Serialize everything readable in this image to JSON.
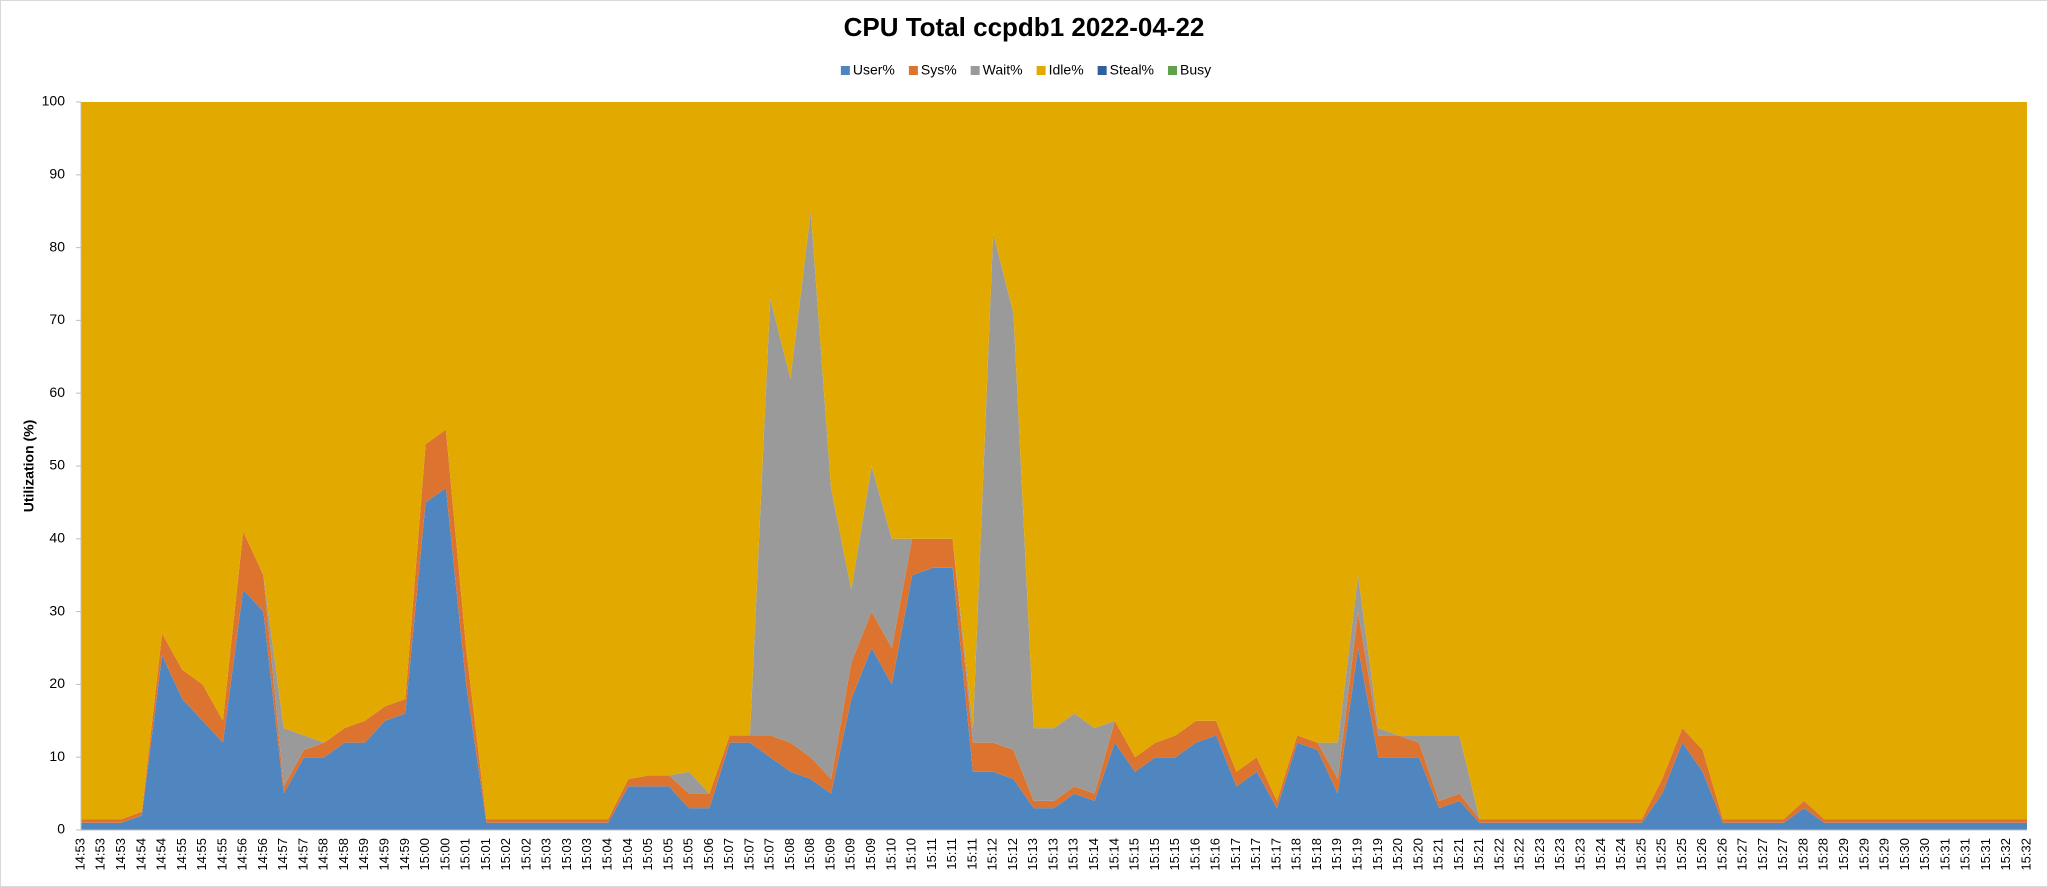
{
  "chart_data": {
    "type": "area",
    "title": "CPU Total ccpdb1  2022-04-22",
    "y_label": "Utilization (%)",
    "legend": "top",
    "categories": [
      "14:53",
      "14:53",
      "14:53",
      "14:54",
      "14:54",
      "14:55",
      "14:55",
      "14:55",
      "14:56",
      "14:56",
      "14:57",
      "14:57",
      "14:58",
      "14:58",
      "14:59",
      "14:59",
      "14:59",
      "15:00",
      "15:00",
      "15:01",
      "15:01",
      "15:02",
      "15:02",
      "15:03",
      "15:03",
      "15:03",
      "15:04",
      "15:04",
      "15:05",
      "15:05",
      "15:05",
      "15:06",
      "15:07",
      "15:07",
      "15:07",
      "15:08",
      "15:08",
      "15:09",
      "15:09",
      "15:09",
      "15:10",
      "15:10",
      "15:11",
      "15:11",
      "15:11",
      "15:12",
      "15:12",
      "15:13",
      "15:13",
      "15:13",
      "15:14",
      "15:14",
      "15:15",
      "15:15",
      "15:15",
      "15:16",
      "15:16",
      "15:17",
      "15:17",
      "15:17",
      "15:18",
      "15:18",
      "15:19",
      "15:19",
      "15:19",
      "15:20",
      "15:20",
      "15:21",
      "15:21",
      "15:21",
      "15:22",
      "15:22",
      "15:23",
      "15:23",
      "15:23",
      "15:24",
      "15:24",
      "15:25",
      "15:25",
      "15:25",
      "15:26",
      "15:26",
      "15:27",
      "15:27",
      "15:27",
      "15:28",
      "15:28",
      "15:29",
      "15:29",
      "15:29",
      "15:30",
      "15:30",
      "15:31",
      "15:31",
      "15:31",
      "15:32",
      "15:32"
    ],
    "series": [
      {
        "name": "User%",
        "color": "#4f86bf",
        "values": [
          1,
          1,
          1,
          2,
          24,
          18,
          15,
          12,
          33,
          30,
          5,
          10,
          10,
          12,
          12,
          15,
          16,
          45,
          47,
          20,
          1,
          1,
          1,
          1,
          1,
          1,
          1,
          6,
          6,
          6,
          3,
          3,
          12,
          12,
          10,
          8,
          7,
          5,
          18,
          25,
          20,
          35,
          36,
          36,
          8,
          8,
          7,
          3,
          3,
          5,
          4,
          12,
          8,
          10,
          10,
          12,
          13,
          6,
          8,
          3,
          12,
          11,
          5,
          25,
          10,
          10,
          10,
          3,
          4,
          1,
          1,
          1,
          1,
          1,
          1,
          1,
          1,
          1,
          5,
          12,
          8,
          1,
          1,
          1,
          1,
          3,
          1,
          1,
          1,
          1,
          1,
          1,
          1,
          1,
          1,
          1,
          1
        ]
      },
      {
        "name": "Sys%",
        "color": "#dc7430",
        "values": [
          0.5,
          0.5,
          0.5,
          0.5,
          3,
          4,
          5,
          3,
          8,
          5,
          1,
          1,
          2,
          2,
          3,
          2,
          2,
          8,
          8,
          5,
          0.5,
          0.5,
          0.5,
          0.5,
          0.5,
          0.5,
          0.5,
          1,
          1.5,
          1.5,
          2,
          2,
          1,
          1,
          3,
          4,
          3,
          2,
          5,
          5,
          5,
          5,
          4,
          4,
          4,
          4,
          4,
          1,
          1,
          1,
          1,
          3,
          2,
          2,
          3,
          3,
          2,
          2,
          2,
          1,
          1,
          1,
          2,
          5,
          3,
          3,
          2,
          1,
          1,
          0.5,
          0.5,
          0.5,
          0.5,
          0.5,
          0.5,
          0.5,
          0.5,
          0.5,
          2,
          2,
          3,
          0.5,
          0.5,
          0.5,
          0.5,
          1,
          0.5,
          0.5,
          0.5,
          0.5,
          0.5,
          0.5,
          0.5,
          0.5,
          0.5,
          0.5,
          0.5
        ]
      },
      {
        "name": "Wait%",
        "color": "#9a9a9a",
        "values": [
          0,
          0,
          0,
          0,
          0,
          0,
          0,
          0,
          0,
          0,
          8,
          2,
          0,
          0,
          0,
          0,
          0,
          0,
          0,
          0,
          0,
          0,
          0,
          0,
          0,
          0,
          0,
          0,
          0,
          0,
          3,
          0,
          0,
          0,
          60,
          50,
          75,
          40,
          10,
          20,
          15,
          0,
          0,
          0,
          2,
          70,
          60,
          10,
          10,
          10,
          9,
          0,
          0,
          0,
          0,
          0,
          0,
          0,
          0,
          0,
          0,
          0,
          5,
          5,
          1,
          0,
          1,
          9,
          8,
          0,
          0,
          0,
          0,
          0,
          0,
          0,
          0,
          0,
          0,
          0,
          0,
          0,
          0,
          0,
          0,
          0,
          0,
          0,
          0,
          0,
          0,
          0,
          0,
          0,
          0,
          0,
          0
        ]
      },
      {
        "name": "Idle%",
        "color": "#e2aa00",
        "values": [
          98.5,
          98.5,
          98.5,
          97.5,
          73,
          78,
          80,
          85,
          59,
          65,
          86,
          87,
          88,
          86,
          85,
          83,
          82,
          47,
          45,
          75,
          98.5,
          98.5,
          98.5,
          98.5,
          98.5,
          98.5,
          98.5,
          93,
          92.5,
          92.5,
          92,
          95,
          87,
          87,
          27,
          38,
          15,
          53,
          67,
          50,
          60,
          60,
          60,
          60,
          86,
          18,
          29,
          86,
          86,
          84,
          86,
          85,
          90,
          88,
          87,
          85,
          85,
          92,
          90,
          96,
          87,
          88,
          88,
          65,
          86,
          87,
          87,
          87,
          87,
          98.5,
          98.5,
          98.5,
          98.5,
          98.5,
          98.5,
          98.5,
          98.5,
          98.5,
          93,
          86,
          89,
          98.5,
          98.5,
          98.5,
          98.5,
          96,
          98.5,
          98.5,
          98.5,
          98.5,
          98.5,
          98.5,
          98.5,
          98.5,
          98.5,
          98.5,
          98.5
        ]
      },
      {
        "name": "Steal%",
        "color": "#2f5f9e",
        "values": [
          0,
          0,
          0,
          0,
          0,
          0,
          0,
          0,
          0,
          0,
          0,
          0,
          0,
          0,
          0,
          0,
          0,
          0,
          0,
          0,
          0,
          0,
          0,
          0,
          0,
          0,
          0,
          0,
          0,
          0,
          0,
          0,
          0,
          0,
          0,
          0,
          0,
          0,
          0,
          0,
          0,
          0,
          0,
          0,
          0,
          0,
          0,
          0,
          0,
          0,
          0,
          0,
          0,
          0,
          0,
          0,
          0,
          0,
          0,
          0,
          0,
          0,
          0,
          0,
          0,
          0,
          0,
          0,
          0,
          0,
          0,
          0,
          0,
          0,
          0,
          0,
          0,
          0,
          0,
          0,
          0,
          0,
          0,
          0,
          0,
          0,
          0,
          0,
          0,
          0,
          0,
          0,
          0,
          0,
          0,
          0,
          0
        ]
      },
      {
        "name": "Busy",
        "color": "#5ea34a",
        "values": [
          0,
          0,
          0,
          0,
          0,
          0,
          0,
          0,
          0,
          0,
          0,
          0,
          0,
          0,
          0,
          0,
          0,
          0,
          0,
          0,
          0,
          0,
          0,
          0,
          0,
          0,
          0,
          0,
          0,
          0,
          0,
          0,
          0,
          0,
          0,
          0,
          0,
          0,
          0,
          0,
          0,
          0,
          0,
          0,
          0,
          0,
          0,
          0,
          0,
          0,
          0,
          0,
          0,
          0,
          0,
          0,
          0,
          0,
          0,
          0,
          0,
          0,
          0,
          0,
          0,
          0,
          0,
          0,
          0,
          0,
          0,
          0,
          0,
          0,
          0,
          0,
          0,
          0,
          0,
          0,
          0,
          0,
          0,
          0,
          0,
          0,
          0,
          0,
          0,
          0,
          0,
          0,
          0,
          0,
          0,
          0,
          0
        ]
      }
    ],
    "ylim": [
      0,
      100
    ],
    "yticks": [
      0,
      10,
      20,
      30,
      40,
      50,
      60,
      70,
      80,
      90,
      100
    ]
  }
}
